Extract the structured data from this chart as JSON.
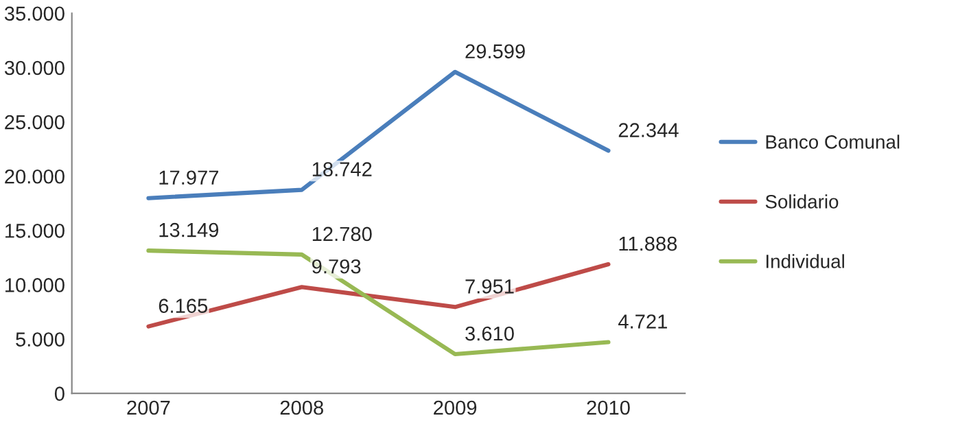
{
  "chart_data": {
    "type": "line",
    "categories": [
      "2007",
      "2008",
      "2009",
      "2010"
    ],
    "ylim": [
      0,
      35000
    ],
    "yticks": [
      {
        "value": 0,
        "label": "0"
      },
      {
        "value": 5000,
        "label": "5.000"
      },
      {
        "value": 10000,
        "label": "10.000"
      },
      {
        "value": 15000,
        "label": "15.000"
      },
      {
        "value": 20000,
        "label": "20.000"
      },
      {
        "value": 25000,
        "label": "25.000"
      },
      {
        "value": 30000,
        "label": "30.000"
      },
      {
        "value": 35000,
        "label": "35.000"
      }
    ],
    "series": [
      {
        "name": "Banco Comunal",
        "color": "#4a7ebb",
        "values": [
          17977,
          18742,
          29599,
          22344
        ],
        "value_labels": [
          "17.977",
          "18.742",
          "29.599",
          "22.344"
        ]
      },
      {
        "name": "Solidario",
        "color": "#be4b48",
        "values": [
          6165,
          9793,
          7951,
          11888
        ],
        "value_labels": [
          "6.165",
          "9.793",
          "7.951",
          "11.888"
        ]
      },
      {
        "name": "Individual",
        "color": "#98b954",
        "values": [
          13149,
          12780,
          3610,
          4721
        ],
        "value_labels": [
          "13.149",
          "12.780",
          "3.610",
          "4.721"
        ]
      }
    ],
    "grid": false,
    "legend": "right",
    "marker": "none",
    "line_style": "solid"
  }
}
